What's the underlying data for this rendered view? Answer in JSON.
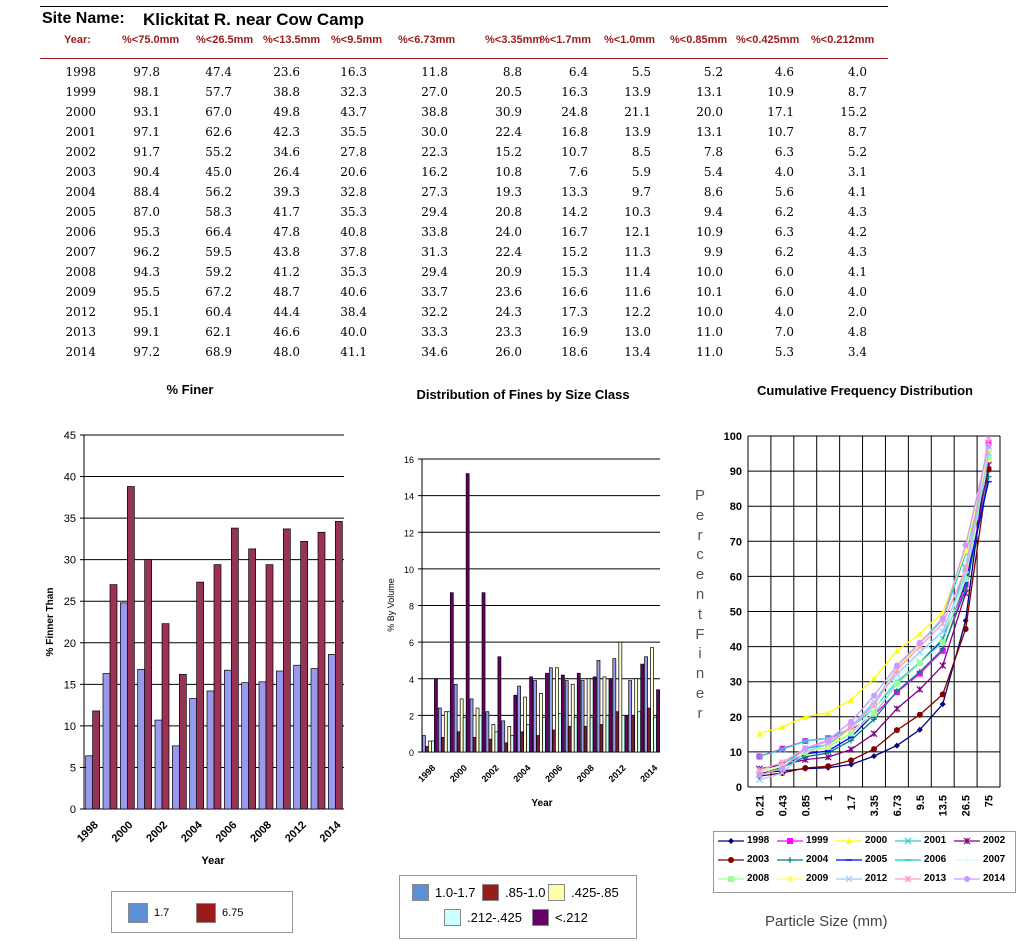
{
  "site": {
    "label": "Site Name:",
    "value": "Klickitat R. near Cow Camp"
  },
  "table": {
    "headers": [
      "Year:",
      "%<75.0mm",
      "%<26.5mm",
      "%<13.5mm",
      "%<9.5mm",
      "%<6.73mm",
      "%<3.35mm",
      "%<1.7mm",
      "%<1.0mm",
      "%<0.85mm",
      "%<0.425mm",
      "%<0.212mm"
    ],
    "rows": [
      [
        "1998",
        "97.8",
        "47.4",
        "23.6",
        "16.3",
        "11.8",
        "8.8",
        "6.4",
        "5.5",
        "5.2",
        "4.6",
        "4.0"
      ],
      [
        "1999",
        "98.1",
        "57.7",
        "38.8",
        "32.3",
        "27.0",
        "20.5",
        "16.3",
        "13.9",
        "13.1",
        "10.9",
        "8.7"
      ],
      [
        "2000",
        "93.1",
        "67.0",
        "49.8",
        "43.7",
        "38.8",
        "30.9",
        "24.8",
        "21.1",
        "20.0",
        "17.1",
        "15.2"
      ],
      [
        "2001",
        "97.1",
        "62.6",
        "42.3",
        "35.5",
        "30.0",
        "22.4",
        "16.8",
        "13.9",
        "13.1",
        "10.7",
        "8.7"
      ],
      [
        "2002",
        "91.7",
        "55.2",
        "34.6",
        "27.8",
        "22.3",
        "15.2",
        "10.7",
        "8.5",
        "7.8",
        "6.3",
        "5.2"
      ],
      [
        "2003",
        "90.4",
        "45.0",
        "26.4",
        "20.6",
        "16.2",
        "10.8",
        "7.6",
        "5.9",
        "5.4",
        "4.0",
        "3.1"
      ],
      [
        "2004",
        "88.4",
        "56.2",
        "39.3",
        "32.8",
        "27.3",
        "19.3",
        "13.3",
        "9.7",
        "8.6",
        "5.6",
        "4.1"
      ],
      [
        "2005",
        "87.0",
        "58.3",
        "41.7",
        "35.3",
        "29.4",
        "20.8",
        "14.2",
        "10.3",
        "9.4",
        "6.2",
        "4.3"
      ],
      [
        "2006",
        "95.3",
        "66.4",
        "47.8",
        "40.8",
        "33.8",
        "24.0",
        "16.7",
        "12.1",
        "10.9",
        "6.3",
        "4.2"
      ],
      [
        "2007",
        "96.2",
        "59.5",
        "43.8",
        "37.8",
        "31.3",
        "22.4",
        "15.2",
        "11.3",
        "9.9",
        "6.2",
        "4.3"
      ],
      [
        "2008",
        "94.3",
        "59.2",
        "41.2",
        "35.3",
        "29.4",
        "20.9",
        "15.3",
        "11.4",
        "10.0",
        "6.0",
        "4.1"
      ],
      [
        "2009",
        "95.5",
        "67.2",
        "48.7",
        "40.6",
        "33.7",
        "23.6",
        "16.6",
        "11.6",
        "10.1",
        "6.0",
        "4.0"
      ],
      [
        "2012",
        "95.1",
        "60.4",
        "44.4",
        "38.4",
        "32.2",
        "24.3",
        "17.3",
        "12.2",
        "10.0",
        "4.0",
        "2.0"
      ],
      [
        "2013",
        "99.1",
        "62.1",
        "46.6",
        "40.0",
        "33.3",
        "23.3",
        "16.9",
        "13.0",
        "11.0",
        "7.0",
        "4.8"
      ],
      [
        "2014",
        "97.2",
        "68.9",
        "48.0",
        "41.1",
        "34.6",
        "26.0",
        "18.6",
        "13.4",
        "11.0",
        "5.3",
        "3.4"
      ]
    ]
  },
  "chart_data": [
    {
      "type": "bar",
      "title": "% Finer",
      "xlabel": "Year",
      "ylabel": "% Finner Than",
      "ylim": [
        0,
        45
      ],
      "yticks": [
        0,
        5,
        10,
        15,
        20,
        25,
        30,
        35,
        40,
        45
      ],
      "categories": [
        "1998",
        "1999",
        "2000",
        "2001",
        "2002",
        "2003",
        "2004",
        "2005",
        "2006",
        "2007",
        "2008",
        "2009",
        "2012",
        "2013",
        "2014"
      ],
      "xtick_labels": [
        "1998",
        "2000",
        "2002",
        "2004",
        "2006",
        "2008",
        "2012",
        "2014"
      ],
      "series": [
        {
          "name": "1.7",
          "color": "#9999ee",
          "values": [
            6.4,
            16.3,
            24.8,
            16.8,
            10.7,
            7.6,
            13.3,
            14.2,
            16.7,
            15.2,
            15.3,
            16.6,
            17.3,
            16.9,
            18.6
          ]
        },
        {
          "name": "6.75",
          "color": "#993355",
          "values": [
            11.8,
            27.0,
            38.8,
            30.0,
            22.3,
            16.2,
            27.3,
            29.4,
            33.8,
            31.3,
            29.4,
            33.7,
            32.2,
            33.3,
            34.6
          ]
        }
      ],
      "legend": "bottom",
      "legend_colors": [
        "#5b8fd6",
        "#9b1b1b"
      ]
    },
    {
      "type": "bar",
      "title": "Distribution of Fines by Size Class",
      "xlabel": "Year",
      "ylabel": "% By Volume",
      "ylim": [
        0,
        16
      ],
      "yticks": [
        0,
        2,
        4,
        6,
        8,
        10,
        12,
        14,
        16
      ],
      "categories": [
        "1998",
        "1999",
        "2000",
        "2001",
        "2002",
        "2003",
        "2004",
        "2005",
        "2006",
        "2007",
        "2008",
        "2009",
        "2012",
        "2013",
        "2014"
      ],
      "xtick_labels": [
        "1998",
        "2000",
        "2002",
        "2004",
        "2006",
        "2008",
        "2012",
        "2014"
      ],
      "series": [
        {
          "name": "1.0-1.7",
          "color": "#9999ee",
          "values": [
            0.9,
            2.4,
            3.7,
            2.9,
            2.2,
            1.7,
            3.6,
            3.9,
            4.6,
            3.9,
            3.9,
            5.0,
            5.1,
            3.9,
            5.2
          ]
        },
        {
          "name": ".85-1.0",
          "color": "#7a1a3a",
          "values": [
            0.3,
            0.8,
            1.1,
            0.8,
            0.7,
            0.5,
            1.1,
            0.9,
            1.2,
            1.4,
            1.4,
            1.5,
            2.2,
            2.0,
            2.4
          ]
        },
        {
          "name": ".425-.85",
          "color": "#ffffcc",
          "values": [
            0.6,
            2.2,
            2.9,
            2.4,
            1.5,
            1.4,
            3.0,
            3.2,
            4.6,
            3.7,
            4.0,
            4.1,
            6.0,
            4.0,
            5.7
          ]
        },
        {
          "name": ".212-.425",
          "color": "#ccffff",
          "values": [
            0.6,
            2.2,
            1.9,
            2.0,
            1.1,
            0.9,
            1.5,
            1.9,
            2.1,
            1.9,
            1.9,
            2.0,
            2.0,
            2.2,
            1.9
          ]
        },
        {
          "name": "<.212",
          "color": "#660066",
          "values": [
            4.0,
            8.7,
            15.2,
            8.7,
            5.2,
            3.1,
            4.1,
            4.3,
            4.2,
            4.3,
            4.1,
            4.0,
            2.0,
            4.8,
            3.4
          ]
        }
      ],
      "legend": "bottom",
      "legend_colors": [
        "#5b8fd6",
        "#9b1b1b",
        "#ffffaa",
        "#ccffff",
        "#660066"
      ]
    },
    {
      "type": "line",
      "title": "Cumulative Frequency Distribution",
      "xlabel": "Particle Size (mm)",
      "ylabel": "PercentFiner",
      "ylim": [
        0,
        100
      ],
      "yticks": [
        0,
        10,
        20,
        30,
        40,
        50,
        60,
        70,
        80,
        90,
        100
      ],
      "x": [
        "0.21",
        "0.43",
        "0.85",
        "1",
        "1.7",
        "3.35",
        "6.73",
        "9.5",
        "13.5",
        "26.5",
        "75"
      ],
      "series": [
        {
          "name": "1998",
          "color": "#000080",
          "marker": "diamond",
          "values": [
            4.0,
            4.6,
            5.2,
            5.5,
            6.4,
            8.8,
            11.8,
            16.3,
            23.6,
            47.4,
            97.8
          ]
        },
        {
          "name": "1999",
          "color": "#ff00ff",
          "marker": "square",
          "values": [
            8.7,
            10.9,
            13.1,
            13.9,
            16.3,
            20.5,
            27.0,
            32.3,
            38.8,
            57.7,
            98.1
          ]
        },
        {
          "name": "2000",
          "color": "#ffff00",
          "marker": "triangle",
          "values": [
            15.2,
            17.1,
            20.0,
            21.1,
            24.8,
            30.9,
            38.8,
            43.7,
            49.8,
            67.0,
            93.1
          ]
        },
        {
          "name": "2001",
          "color": "#33cccc",
          "marker": "x",
          "values": [
            8.7,
            10.7,
            13.1,
            13.9,
            16.8,
            22.4,
            30.0,
            35.5,
            42.3,
            62.6,
            97.1
          ]
        },
        {
          "name": "2002",
          "color": "#800080",
          "marker": "star",
          "values": [
            5.2,
            6.3,
            7.8,
            8.5,
            10.7,
            15.2,
            22.3,
            27.8,
            34.6,
            55.2,
            91.7
          ]
        },
        {
          "name": "2003",
          "color": "#800000",
          "marker": "circle",
          "values": [
            3.1,
            4.0,
            5.4,
            5.9,
            7.6,
            10.8,
            16.2,
            20.6,
            26.4,
            45.0,
            90.4
          ]
        },
        {
          "name": "2004",
          "color": "#008080",
          "marker": "plus",
          "values": [
            4.1,
            5.6,
            8.6,
            9.7,
            13.3,
            19.3,
            27.3,
            32.8,
            39.3,
            56.2,
            88.4
          ]
        },
        {
          "name": "2005",
          "color": "#0000ff",
          "marker": "dash",
          "values": [
            4.3,
            6.2,
            9.4,
            10.3,
            14.2,
            20.8,
            29.4,
            35.3,
            41.7,
            58.3,
            87.0
          ]
        },
        {
          "name": "2006",
          "color": "#00cccc",
          "marker": "dash",
          "values": [
            4.2,
            6.3,
            10.9,
            12.1,
            16.7,
            24.0,
            33.8,
            40.8,
            47.8,
            66.4,
            95.3
          ]
        },
        {
          "name": "2007",
          "color": "#ccffff",
          "marker": "plus",
          "values": [
            4.3,
            6.2,
            9.9,
            11.3,
            15.2,
            22.4,
            31.3,
            37.8,
            43.8,
            59.5,
            96.2
          ]
        },
        {
          "name": "2008",
          "color": "#99ff99",
          "marker": "square",
          "values": [
            4.1,
            6.0,
            10.0,
            11.4,
            15.3,
            20.9,
            29.4,
            35.3,
            41.2,
            59.2,
            94.3
          ]
        },
        {
          "name": "2009",
          "color": "#ffff66",
          "marker": "circle",
          "values": [
            4.0,
            6.0,
            10.1,
            11.6,
            16.6,
            23.6,
            33.7,
            40.6,
            48.7,
            67.2,
            95.5
          ]
        },
        {
          "name": "2012",
          "color": "#99ccff",
          "marker": "x",
          "values": [
            2.0,
            4.0,
            10.0,
            12.2,
            17.3,
            24.3,
            32.2,
            38.4,
            44.4,
            60.4,
            95.1
          ]
        },
        {
          "name": "2013",
          "color": "#ff99cc",
          "marker": "star",
          "values": [
            4.8,
            7.0,
            11.0,
            13.0,
            16.9,
            23.3,
            33.3,
            40.0,
            46.6,
            62.1,
            99.1
          ]
        },
        {
          "name": "2014",
          "color": "#cc99ff",
          "marker": "circle",
          "values": [
            3.4,
            5.3,
            11.0,
            13.4,
            18.6,
            26.0,
            34.6,
            41.1,
            48.0,
            68.9,
            97.2
          ]
        }
      ],
      "legend": "bottom",
      "grid": true
    }
  ]
}
